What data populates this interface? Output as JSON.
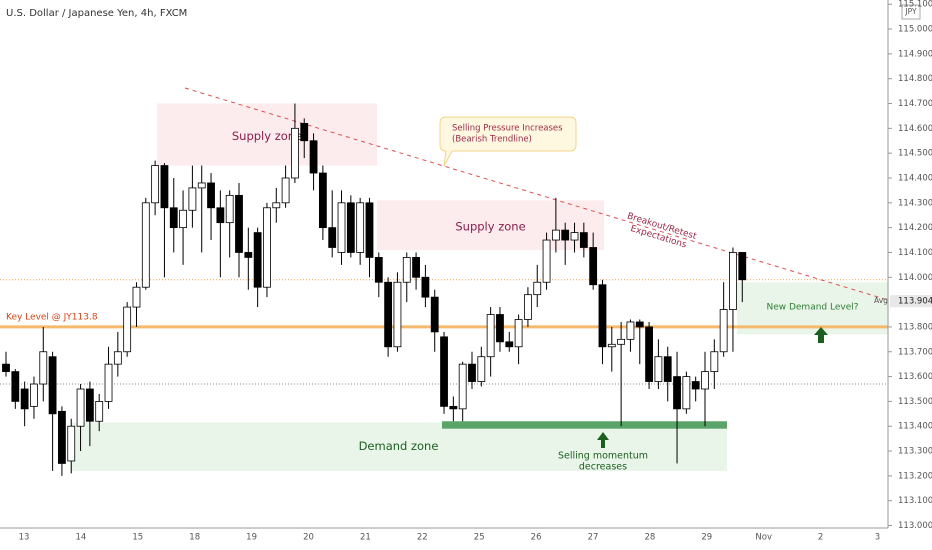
{
  "chart_data": {
    "type": "candlestick",
    "title": "U.S. Dollar / Japanese Yen, 4h, FXCM",
    "currency": "JPY",
    "x_labels": [
      "13",
      "14",
      "15",
      "18",
      "19",
      "20",
      "21",
      "22",
      "25",
      "26",
      "27",
      "28",
      "29",
      "Nov",
      "2",
      "3"
    ],
    "ylim": [
      112.99,
      115.117
    ],
    "yticks": [
      {
        "value": 113.0,
        "label": "113.000"
      },
      {
        "value": 113.1,
        "label": "113.100"
      },
      {
        "value": 113.2,
        "label": "113.200"
      },
      {
        "value": 113.3,
        "label": "113.300"
      },
      {
        "value": 113.4,
        "label": "113.400"
      },
      {
        "value": 113.5,
        "label": "113.500"
      },
      {
        "value": 113.6,
        "label": "113.600"
      },
      {
        "value": 113.7,
        "label": "113.700"
      },
      {
        "value": 113.8,
        "label": "113.800"
      },
      {
        "value": 114.0,
        "label": "114.000"
      },
      {
        "value": 114.1,
        "label": "114.100"
      },
      {
        "value": 114.2,
        "label": "114.200"
      },
      {
        "value": 114.3,
        "label": "114.300"
      },
      {
        "value": 114.4,
        "label": "114.400"
      },
      {
        "value": 114.5,
        "label": "114.500"
      },
      {
        "value": 114.6,
        "label": "114.600"
      },
      {
        "value": 114.7,
        "label": "114.700"
      },
      {
        "value": 114.8,
        "label": "114.800"
      },
      {
        "value": 114.9,
        "label": "114.900"
      },
      {
        "value": 115.0,
        "label": "115.000"
      },
      {
        "value": 115.1,
        "label": "115.100"
      }
    ],
    "avg": {
      "value": 113.904,
      "name": "Avg",
      "label": "113.904"
    },
    "candles": [
      [
        113.65,
        113.7,
        113.6,
        113.62
      ],
      [
        113.62,
        113.63,
        113.47,
        113.5
      ],
      [
        113.55,
        113.58,
        113.4,
        113.47
      ],
      [
        113.48,
        113.6,
        113.43,
        113.57
      ],
      [
        113.57,
        113.8,
        113.5,
        113.7
      ],
      [
        113.68,
        113.7,
        113.22,
        113.45
      ],
      [
        113.46,
        113.48,
        113.2,
        113.25
      ],
      [
        113.26,
        113.43,
        113.21,
        113.4
      ],
      [
        113.4,
        113.57,
        113.3,
        113.55
      ],
      [
        113.55,
        113.58,
        113.32,
        113.42
      ],
      [
        113.42,
        113.53,
        113.38,
        113.5
      ],
      [
        113.5,
        113.72,
        113.47,
        113.65
      ],
      [
        113.65,
        113.78,
        113.6,
        113.7
      ],
      [
        113.7,
        113.9,
        113.68,
        113.88
      ],
      [
        113.88,
        113.98,
        113.8,
        113.96
      ],
      [
        113.96,
        114.32,
        113.95,
        114.3
      ],
      [
        114.3,
        114.47,
        114.25,
        114.45
      ],
      [
        114.45,
        114.46,
        114.0,
        114.28
      ],
      [
        114.28,
        114.4,
        114.1,
        114.2
      ],
      [
        114.2,
        114.35,
        114.05,
        114.27
      ],
      [
        114.27,
        114.45,
        114.2,
        114.36
      ],
      [
        114.36,
        114.45,
        114.1,
        114.38
      ],
      [
        114.38,
        114.42,
        114.15,
        114.28
      ],
      [
        114.28,
        114.35,
        114.0,
        114.22
      ],
      [
        114.22,
        114.35,
        114.08,
        114.33
      ],
      [
        114.33,
        114.38,
        114.0,
        114.1
      ],
      [
        114.1,
        114.2,
        113.95,
        114.08
      ],
      [
        114.18,
        114.2,
        113.88,
        113.96
      ],
      [
        113.96,
        114.3,
        113.92,
        114.28
      ],
      [
        114.28,
        114.36,
        114.22,
        114.3
      ],
      [
        114.3,
        114.45,
        114.28,
        114.4
      ],
      [
        114.4,
        114.7,
        114.38,
        114.6
      ],
      [
        114.62,
        114.64,
        114.48,
        114.55
      ],
      [
        114.55,
        114.58,
        114.35,
        114.42
      ],
      [
        114.42,
        114.45,
        114.15,
        114.2
      ],
      [
        114.2,
        114.35,
        114.08,
        114.12
      ],
      [
        114.1,
        114.35,
        114.05,
        114.3
      ],
      [
        114.3,
        114.33,
        114.08,
        114.1
      ],
      [
        114.1,
        114.32,
        114.05,
        114.3
      ],
      [
        114.3,
        114.32,
        114.0,
        114.08
      ],
      [
        114.08,
        114.1,
        113.92,
        113.98
      ],
      [
        113.98,
        114.0,
        113.68,
        113.72
      ],
      [
        113.72,
        114.02,
        113.7,
        113.98
      ],
      [
        113.98,
        114.1,
        113.9,
        114.08
      ],
      [
        114.08,
        114.1,
        113.95,
        114.0
      ],
      [
        114.0,
        114.05,
        113.88,
        113.92
      ],
      [
        113.92,
        113.95,
        113.7,
        113.78
      ],
      [
        113.76,
        113.78,
        113.45,
        113.48
      ],
      [
        113.48,
        113.52,
        113.42,
        113.47
      ],
      [
        113.47,
        113.66,
        113.42,
        113.65
      ],
      [
        113.65,
        113.7,
        113.55,
        113.58
      ],
      [
        113.58,
        113.72,
        113.56,
        113.68
      ],
      [
        113.68,
        113.88,
        113.6,
        113.85
      ],
      [
        113.85,
        113.88,
        113.7,
        113.74
      ],
      [
        113.74,
        113.78,
        113.7,
        113.72
      ],
      [
        113.72,
        113.85,
        113.65,
        113.83
      ],
      [
        113.83,
        113.96,
        113.8,
        113.93
      ],
      [
        113.93,
        114.05,
        113.88,
        113.98
      ],
      [
        113.98,
        114.18,
        113.95,
        114.15
      ],
      [
        114.15,
        114.32,
        114.1,
        114.19
      ],
      [
        114.19,
        114.22,
        114.05,
        114.15
      ],
      [
        114.15,
        114.22,
        114.1,
        114.18
      ],
      [
        114.18,
        114.22,
        114.08,
        114.12
      ],
      [
        114.12,
        114.18,
        113.95,
        113.97
      ],
      [
        113.97,
        113.99,
        113.65,
        113.72
      ],
      [
        113.72,
        113.8,
        113.62,
        113.73
      ],
      [
        113.73,
        113.82,
        113.4,
        113.75
      ],
      [
        113.75,
        113.83,
        113.7,
        113.82
      ],
      [
        113.82,
        113.83,
        113.65,
        113.8
      ],
      [
        113.8,
        113.82,
        113.55,
        113.58
      ],
      [
        113.58,
        113.75,
        113.55,
        113.68
      ],
      [
        113.68,
        113.72,
        113.5,
        113.58
      ],
      [
        113.6,
        113.7,
        113.25,
        113.47
      ],
      [
        113.47,
        113.62,
        113.45,
        113.6
      ],
      [
        113.58,
        113.6,
        113.5,
        113.55
      ],
      [
        113.55,
        113.7,
        113.4,
        113.62
      ],
      [
        113.62,
        113.75,
        113.55,
        113.7
      ],
      [
        113.7,
        113.98,
        113.68,
        113.87
      ],
      [
        113.87,
        114.12,
        113.7,
        114.1
      ],
      [
        114.1,
        114.1,
        113.9,
        113.99
      ]
    ],
    "key_level": {
      "label": "Key Level @ JY113.8",
      "value": 113.8
    },
    "current_price_line": 113.99,
    "reference_line": 113.57,
    "zones": [
      {
        "label": "Supply zone",
        "high": 114.7,
        "low": 114.45
      },
      {
        "label": "Supply zone",
        "high": 114.31,
        "low": 114.11
      },
      {
        "label": "Demand zone",
        "high": 113.415,
        "low": 113.22
      },
      {
        "label": "New Demand Level?",
        "high": 113.98,
        "low": 113.77
      }
    ],
    "support_line": {
      "high": 113.42,
      "low": 113.39
    },
    "annotations": {
      "trendline_note": [
        "Selling Pressure Increases",
        "(Bearish Trendline)"
      ],
      "breakout_note": [
        "Breakout/Retest",
        "Expectations"
      ],
      "momentum_note": [
        "Selling momentum",
        "decreases"
      ]
    }
  }
}
